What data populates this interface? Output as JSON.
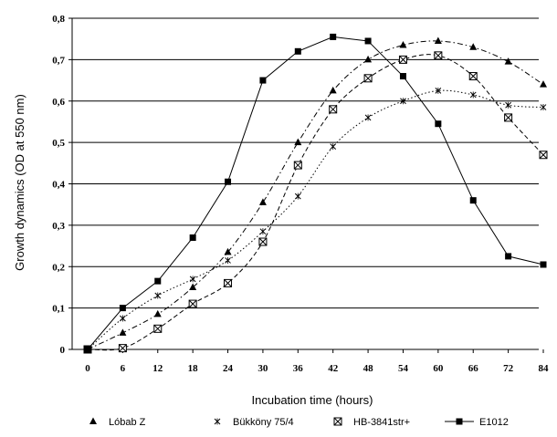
{
  "chart_data": {
    "type": "line",
    "xlabel": "Incubation time (hours)",
    "ylabel": "Growth dynamics (OD at 550 nm)",
    "x": [
      0,
      6,
      12,
      18,
      24,
      30,
      36,
      42,
      48,
      54,
      60,
      66,
      72,
      84
    ],
    "x_tick_labels": [
      "0",
      "6",
      "12",
      "18",
      "24",
      "30",
      "36",
      "42",
      "48",
      "54",
      "60",
      "66",
      "72",
      "84"
    ],
    "y_tick_labels": [
      "0",
      "0,1",
      "0,2",
      "0,3",
      "0,4",
      "0,5",
      "0,6",
      "0,7",
      "0,8"
    ],
    "ylim": [
      0,
      0.8
    ],
    "grid": "horizontal",
    "legend_position": "bottom",
    "series": [
      {
        "name": "Lóbab Z",
        "marker": "triangle",
        "line": "dash-dot",
        "color": "#000000",
        "values": [
          0.0,
          0.04,
          0.085,
          0.15,
          0.235,
          0.355,
          0.5,
          0.625,
          0.7,
          0.735,
          0.745,
          0.73,
          0.695,
          0.64
        ]
      },
      {
        "name": "Bükköny 75/4",
        "marker": "x",
        "line": "dotted",
        "color": "#000000",
        "values": [
          0.0,
          0.075,
          0.13,
          0.17,
          0.215,
          0.285,
          0.37,
          0.49,
          0.56,
          0.6,
          0.625,
          0.615,
          0.59,
          0.585
        ]
      },
      {
        "name": "HB-3841str+",
        "marker": "boxed-x",
        "line": "dashed",
        "color": "#000000",
        "values": [
          0.0,
          0.003,
          0.05,
          0.11,
          0.16,
          0.26,
          0.445,
          0.58,
          0.655,
          0.7,
          0.71,
          0.66,
          0.56,
          0.47
        ]
      },
      {
        "name": "E1012",
        "marker": "square",
        "line": "solid",
        "color": "#000000",
        "values": [
          0.0,
          0.1,
          0.165,
          0.27,
          0.405,
          0.65,
          0.72,
          0.755,
          0.745,
          0.66,
          0.545,
          0.36,
          0.225,
          0.205
        ]
      }
    ]
  }
}
